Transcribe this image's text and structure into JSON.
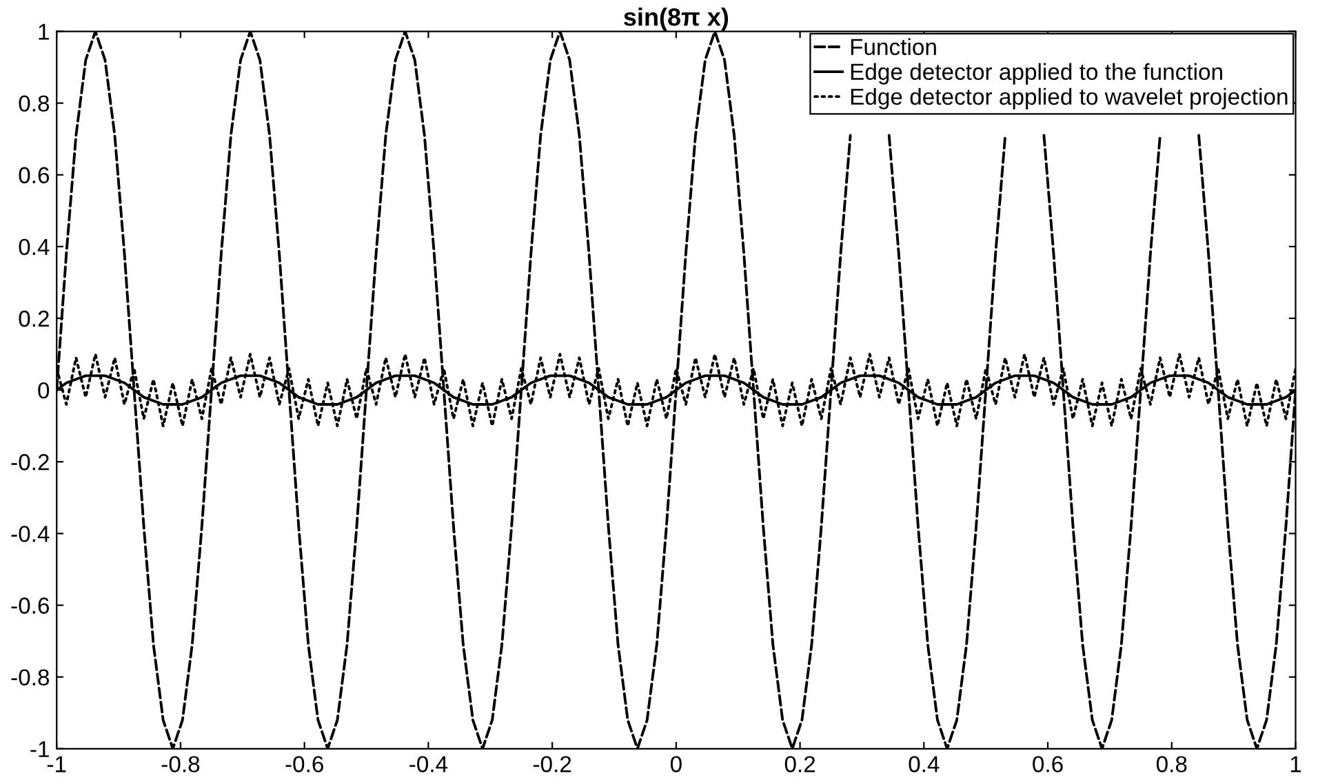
{
  "chart_data": {
    "type": "line",
    "title": "sin(8π x)",
    "x": [
      -1,
      -0.984375,
      -0.96875,
      -0.953125,
      -0.9375,
      -0.921875,
      -0.90625,
      -0.890625,
      -0.875,
      -0.859375,
      -0.84375,
      -0.828125,
      -0.8125,
      -0.796875,
      -0.78125,
      -0.765625,
      -0.75,
      -0.734375,
      -0.71875,
      -0.703125,
      -0.6875,
      -0.671875,
      -0.65625,
      -0.640625,
      -0.625,
      -0.609375,
      -0.59375,
      -0.578125,
      -0.5625,
      -0.546875,
      -0.53125,
      -0.515625,
      -0.5,
      -0.484375,
      -0.46875,
      -0.453125,
      -0.4375,
      -0.421875,
      -0.40625,
      -0.390625,
      -0.375,
      -0.359375,
      -0.34375,
      -0.328125,
      -0.3125,
      -0.296875,
      -0.28125,
      -0.265625,
      -0.25,
      -0.234375,
      -0.21875,
      -0.203125,
      -0.1875,
      -0.171875,
      -0.15625,
      -0.140625,
      -0.125,
      -0.109375,
      -0.09375,
      -0.078125,
      -0.0625,
      -0.046875,
      -0.03125,
      -0.015625,
      0,
      0.015625,
      0.03125,
      0.046875,
      0.0625,
      0.078125,
      0.09375,
      0.109375,
      0.125,
      0.140625,
      0.15625,
      0.171875,
      0.1875,
      0.203125,
      0.21875,
      0.234375,
      0.25,
      0.265625,
      0.28125,
      0.296875,
      0.3125,
      0.328125,
      0.34375,
      0.359375,
      0.375,
      0.390625,
      0.40625,
      0.421875,
      0.4375,
      0.453125,
      0.46875,
      0.484375,
      0.5,
      0.515625,
      0.53125,
      0.546875,
      0.5625,
      0.578125,
      0.59375,
      0.609375,
      0.625,
      0.640625,
      0.65625,
      0.671875,
      0.6875,
      0.703125,
      0.71875,
      0.734375,
      0.75,
      0.765625,
      0.78125,
      0.796875,
      0.8125,
      0.828125,
      0.84375,
      0.859375,
      0.875,
      0.890625,
      0.90625,
      0.921875,
      0.9375,
      0.953125,
      0.96875,
      0.984375,
      1
    ],
    "series": [
      {
        "name": "Function",
        "color": "#000000",
        "line_style": "dashed",
        "values": [
          0,
          0.38,
          0.71,
          0.92,
          1,
          0.92,
          0.71,
          0.38,
          0,
          -0.38,
          -0.71,
          -0.92,
          -1,
          -0.92,
          -0.71,
          -0.38,
          0,
          0.38,
          0.71,
          0.92,
          1,
          0.92,
          0.71,
          0.38,
          0,
          -0.38,
          -0.71,
          -0.92,
          -1,
          -0.92,
          -0.71,
          -0.38,
          0,
          0.38,
          0.71,
          0.92,
          1,
          0.92,
          0.71,
          0.38,
          0,
          -0.38,
          -0.71,
          -0.92,
          -1,
          -0.92,
          -0.71,
          -0.38,
          0,
          0.38,
          0.71,
          0.92,
          1,
          0.92,
          0.71,
          0.38,
          0,
          -0.38,
          -0.71,
          -0.92,
          -1,
          -0.92,
          -0.71,
          -0.38,
          0,
          0.38,
          0.71,
          0.92,
          1,
          0.92,
          0.71,
          0.38,
          0,
          -0.38,
          -0.71,
          -0.92,
          -1,
          -0.92,
          -0.71,
          -0.38,
          0,
          0.38,
          0.71,
          null,
          null,
          null,
          0.71,
          0.38,
          0,
          -0.38,
          -0.71,
          -0.92,
          -1,
          -0.92,
          -0.71,
          -0.38,
          0,
          0.38,
          0.71,
          null,
          null,
          null,
          0.71,
          0.38,
          0,
          -0.38,
          -0.71,
          -0.92,
          -1,
          -0.92,
          -0.71,
          -0.38,
          0,
          0.38,
          0.71,
          null,
          null,
          null,
          0.71,
          0.38,
          0,
          -0.38,
          -0.71,
          -0.92,
          -1,
          -0.92,
          -0.71,
          -0.38,
          0
        ]
      },
      {
        "name": "Edge detector applied to the function",
        "color": "#000000",
        "line_style": "solid",
        "values": [
          0,
          0.02,
          0.03,
          0.04,
          0.04,
          0.04,
          0.03,
          0.02,
          0,
          -0.02,
          -0.03,
          -0.04,
          -0.04,
          -0.04,
          -0.03,
          -0.02,
          0,
          0.02,
          0.03,
          0.04,
          0.04,
          0.04,
          0.03,
          0.02,
          0,
          -0.02,
          -0.03,
          -0.04,
          -0.04,
          -0.04,
          -0.03,
          -0.02,
          0,
          0.02,
          0.03,
          0.04,
          0.04,
          0.04,
          0.03,
          0.02,
          0,
          -0.02,
          -0.03,
          -0.04,
          -0.04,
          -0.04,
          -0.03,
          -0.02,
          0,
          0.02,
          0.03,
          0.04,
          0.04,
          0.04,
          0.03,
          0.02,
          0,
          -0.02,
          -0.03,
          -0.04,
          -0.04,
          -0.04,
          -0.03,
          -0.02,
          0,
          0.02,
          0.03,
          0.04,
          0.04,
          0.04,
          0.03,
          0.02,
          0,
          -0.02,
          -0.03,
          -0.04,
          -0.04,
          -0.04,
          -0.03,
          -0.02,
          0,
          0.02,
          0.03,
          0.04,
          0.04,
          0.04,
          0.03,
          0.02,
          0,
          -0.02,
          -0.03,
          -0.04,
          -0.04,
          -0.04,
          -0.03,
          -0.02,
          0,
          0.02,
          0.03,
          0.04,
          0.04,
          0.04,
          0.03,
          0.02,
          0,
          -0.02,
          -0.03,
          -0.04,
          -0.04,
          -0.04,
          -0.03,
          -0.02,
          0,
          0.02,
          0.03,
          0.04,
          0.04,
          0.04,
          0.03,
          0.02,
          0,
          -0.02,
          -0.03,
          -0.04,
          -0.04,
          -0.04,
          -0.03,
          -0.02,
          0
        ]
      },
      {
        "name": "Edge detector applied to wavelet projection",
        "color": "#000000",
        "line_style": "dotted",
        "values": [
          0.06,
          -0.04,
          0.09,
          -0.02,
          0.1,
          -0.02,
          0.09,
          -0.04,
          0.06,
          -0.08,
          0.03,
          -0.1,
          0.02,
          -0.1,
          0.03,
          -0.08,
          0.06,
          -0.04,
          0.09,
          -0.02,
          0.1,
          -0.02,
          0.09,
          -0.04,
          0.06,
          -0.08,
          0.03,
          -0.1,
          0.02,
          -0.1,
          0.03,
          -0.08,
          0.06,
          -0.04,
          0.09,
          -0.02,
          0.1,
          -0.02,
          0.09,
          -0.04,
          0.06,
          -0.08,
          0.03,
          -0.1,
          0.02,
          -0.1,
          0.03,
          -0.08,
          0.06,
          -0.04,
          0.09,
          -0.02,
          0.1,
          -0.02,
          0.09,
          -0.04,
          0.06,
          -0.08,
          0.03,
          -0.1,
          0.02,
          -0.1,
          0.03,
          -0.08,
          0.06,
          -0.04,
          0.09,
          -0.02,
          0.1,
          -0.02,
          0.09,
          -0.04,
          0.06,
          -0.08,
          0.03,
          -0.1,
          0.02,
          -0.1,
          0.03,
          -0.08,
          0.06,
          -0.04,
          0.09,
          -0.02,
          0.1,
          -0.02,
          0.09,
          -0.04,
          0.06,
          -0.08,
          0.03,
          -0.1,
          0.02,
          -0.1,
          0.03,
          -0.08,
          0.06,
          -0.04,
          0.09,
          -0.02,
          0.1,
          -0.02,
          0.09,
          -0.04,
          0.06,
          -0.08,
          0.03,
          -0.1,
          0.02,
          -0.1,
          0.03,
          -0.08,
          0.06,
          -0.04,
          0.09,
          -0.02,
          0.1,
          -0.02,
          0.09,
          -0.04,
          0.06,
          -0.08,
          0.03,
          -0.1,
          0.02,
          -0.1,
          0.03,
          -0.08,
          0.06
        ]
      }
    ],
    "xlim": [
      -1,
      1
    ],
    "ylim": [
      -1,
      1
    ],
    "xticks": [
      -1,
      -0.8,
      -0.6,
      -0.4,
      -0.2,
      0,
      0.2,
      0.4,
      0.6,
      0.8,
      1
    ],
    "yticks": [
      -1,
      -0.8,
      -0.6,
      -0.4,
      -0.2,
      0,
      0.2,
      0.4,
      0.6,
      0.8,
      1
    ],
    "grid": false,
    "legend": "top right"
  }
}
